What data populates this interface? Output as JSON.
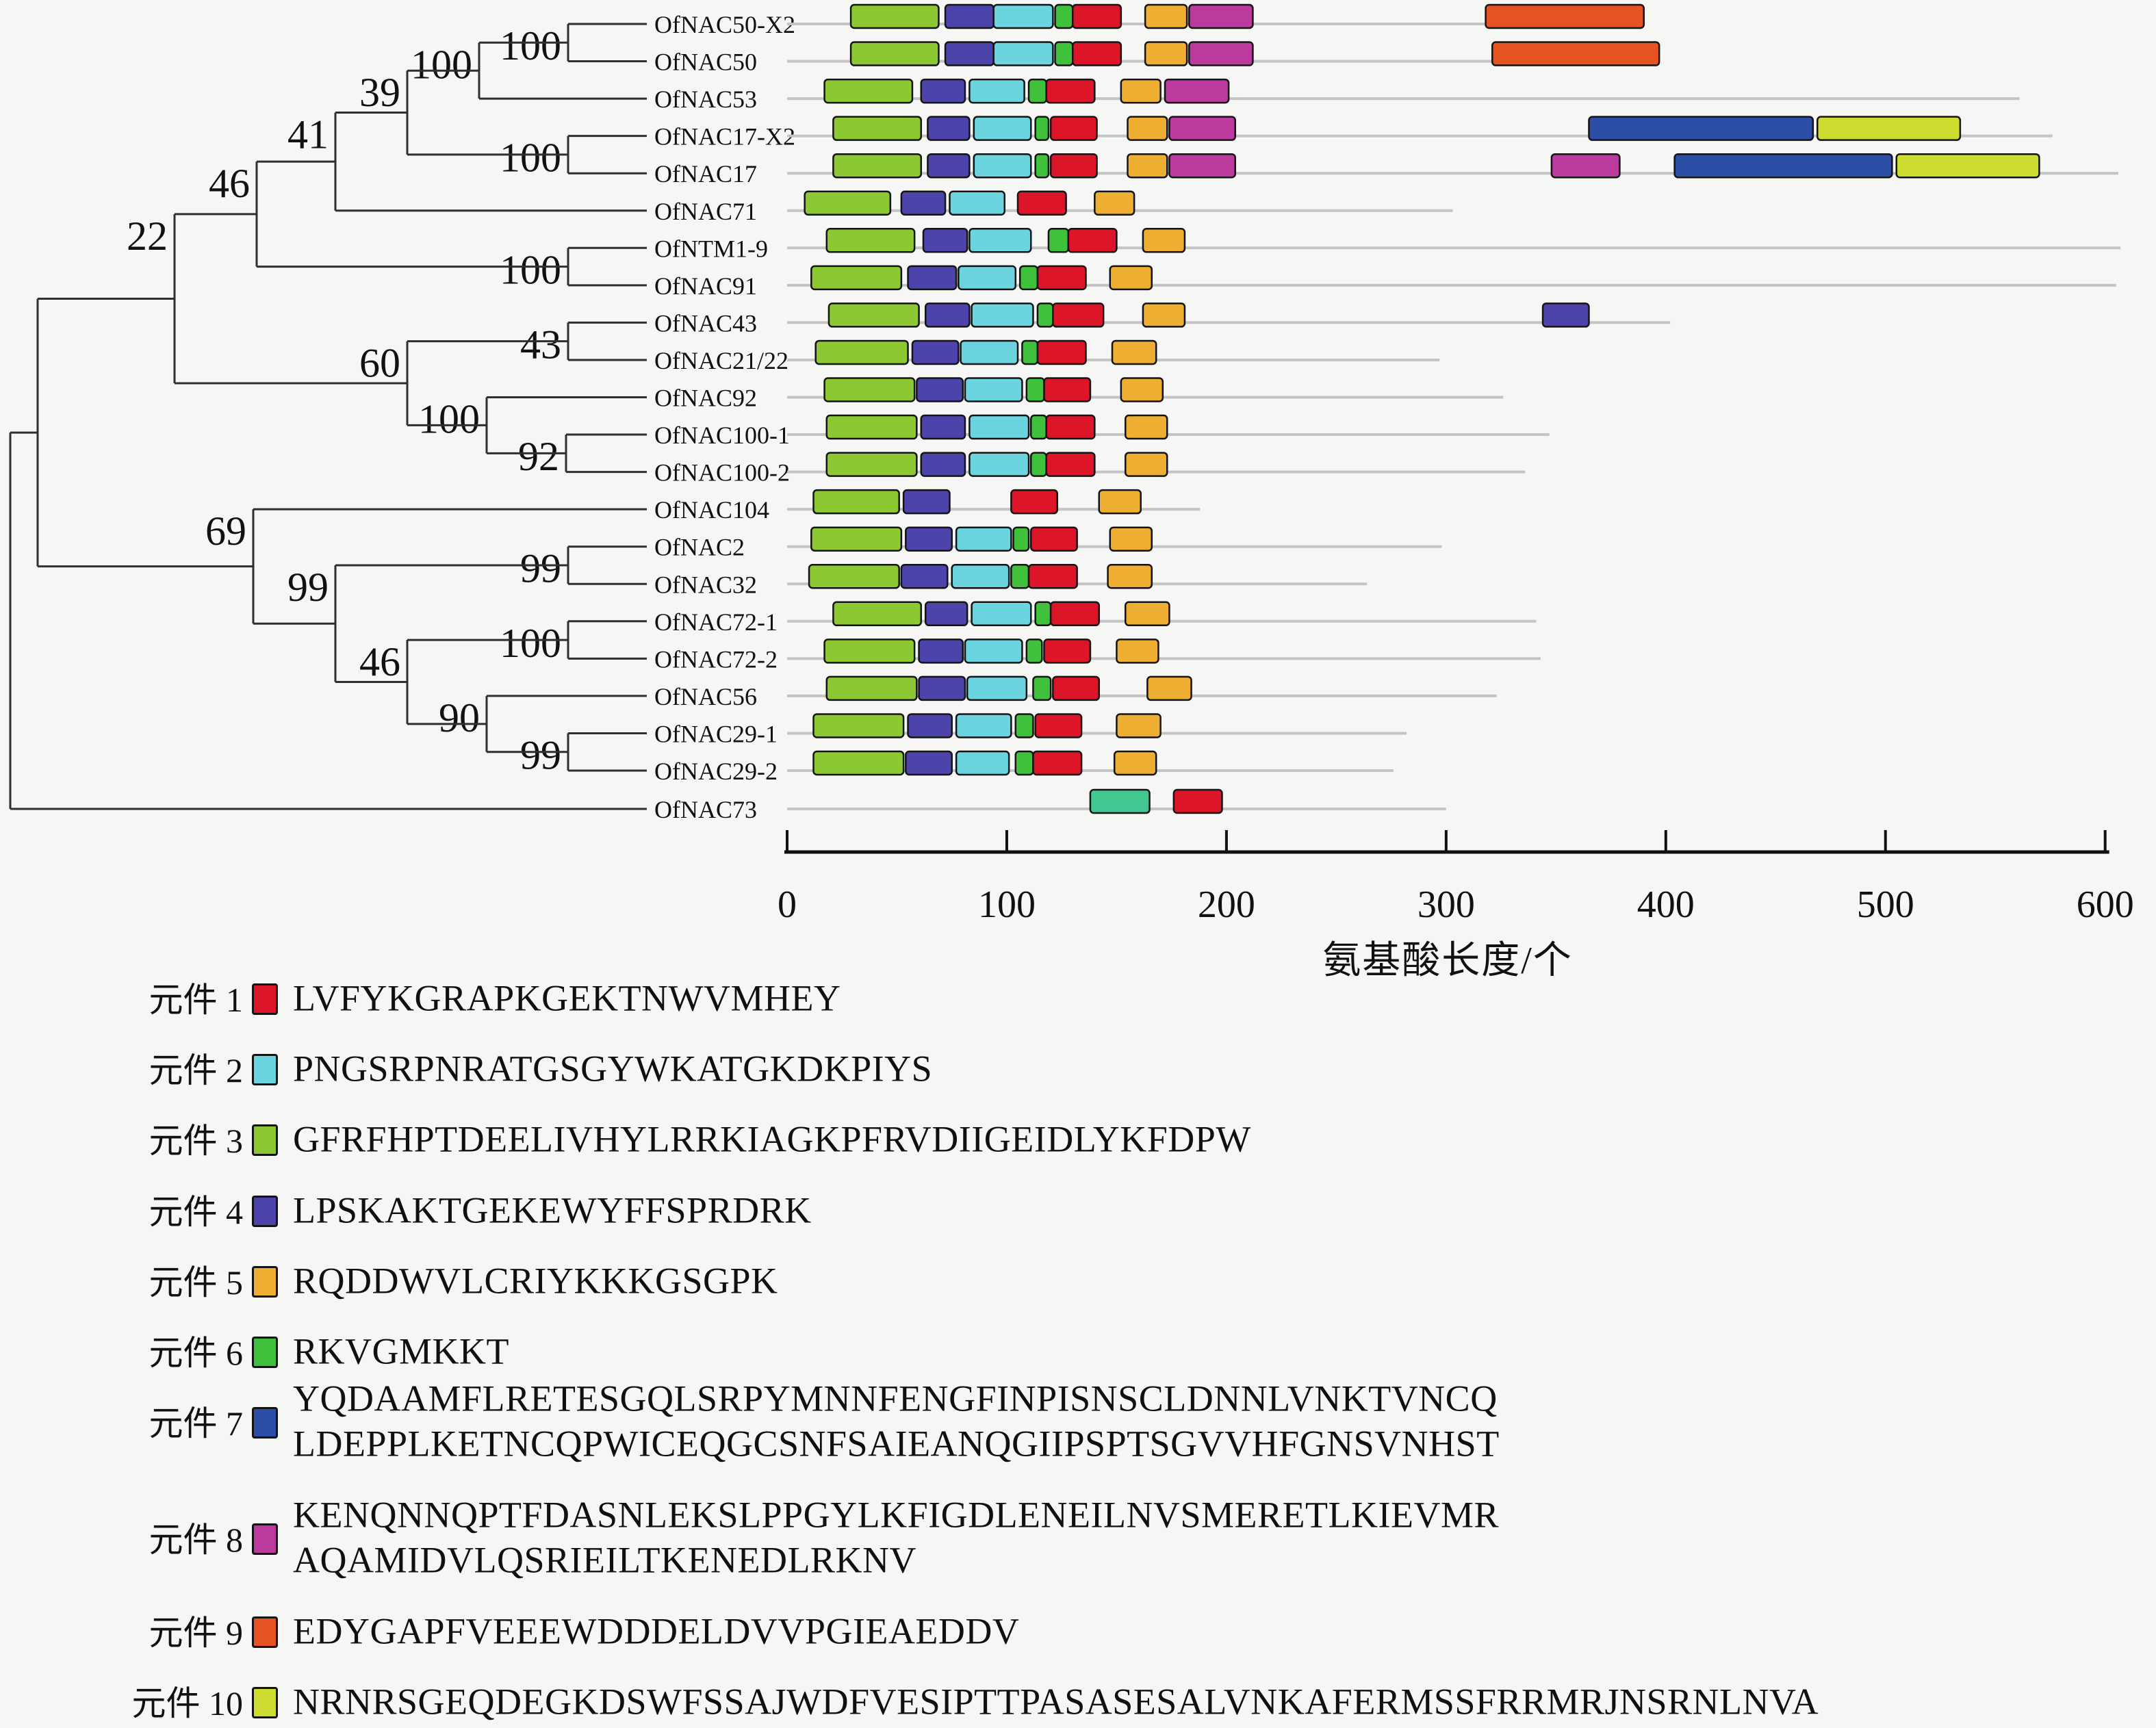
{
  "chart_data": {
    "type": "bar",
    "subtype": "protein-motif-location-map-with-phylogeny",
    "title": "",
    "xlabel": "氨基酸长度/个",
    "xlim": [
      0,
      600
    ],
    "x_ticks": [
      0,
      100,
      200,
      300,
      400,
      500,
      600
    ],
    "grid": false,
    "genes": [
      {
        "name": "OfNAC50-X2",
        "length": 389,
        "motifs": [
          [
            "m3",
            29,
            69
          ],
          [
            "m4",
            72,
            94
          ],
          [
            "m2",
            94,
            121
          ],
          [
            "m6",
            122,
            130
          ],
          [
            "m1",
            130,
            152
          ],
          [
            "m5",
            163,
            182
          ],
          [
            "m8",
            183,
            212
          ],
          [
            "m9",
            318,
            390
          ]
        ]
      },
      {
        "name": "OfNAC50",
        "length": 397,
        "motifs": [
          [
            "m3",
            29,
            69
          ],
          [
            "m4",
            72,
            94
          ],
          [
            "m2",
            94,
            121
          ],
          [
            "m6",
            122,
            130
          ],
          [
            "m1",
            130,
            152
          ],
          [
            "m5",
            163,
            182
          ],
          [
            "m8",
            183,
            212
          ],
          [
            "m9",
            321,
            397
          ]
        ]
      },
      {
        "name": "OfNAC53",
        "length": 561,
        "motifs": [
          [
            "m3",
            17,
            57
          ],
          [
            "m4",
            61,
            81
          ],
          [
            "m2",
            83,
            108
          ],
          [
            "m6",
            110,
            118
          ],
          [
            "m1",
            118,
            140
          ],
          [
            "m5",
            152,
            170
          ],
          [
            "m8",
            172,
            201
          ]
        ]
      },
      {
        "name": "OfNAC17-X2",
        "length": 576,
        "motifs": [
          [
            "m3",
            21,
            61
          ],
          [
            "m4",
            64,
            83
          ],
          [
            "m2",
            85,
            111
          ],
          [
            "m6",
            113,
            119
          ],
          [
            "m1",
            120,
            141
          ],
          [
            "m5",
            155,
            173
          ],
          [
            "m8",
            174,
            204
          ],
          [
            "m7",
            365,
            467
          ],
          [
            "m10",
            469,
            534
          ]
        ]
      },
      {
        "name": "OfNAC17",
        "length": 606,
        "motifs": [
          [
            "m3",
            21,
            61
          ],
          [
            "m4",
            64,
            83
          ],
          [
            "m2",
            85,
            111
          ],
          [
            "m6",
            113,
            119
          ],
          [
            "m1",
            120,
            141
          ],
          [
            "m5",
            155,
            173
          ],
          [
            "m8",
            174,
            204
          ],
          [
            "m8",
            348,
            379
          ],
          [
            "m7",
            404,
            503
          ],
          [
            "m10",
            505,
            570
          ]
        ]
      },
      {
        "name": "OfNAC71",
        "length": 303,
        "motifs": [
          [
            "m3",
            8,
            47
          ],
          [
            "m4",
            52,
            72
          ],
          [
            "m2",
            74,
            99
          ],
          [
            "m1",
            105,
            127
          ],
          [
            "m5",
            140,
            158
          ]
        ]
      },
      {
        "name": "OfNTM1-9",
        "length": 607,
        "motifs": [
          [
            "m3",
            18,
            58
          ],
          [
            "m4",
            62,
            82
          ],
          [
            "m2",
            83,
            111
          ],
          [
            "m6",
            119,
            128
          ],
          [
            "m1",
            128,
            150
          ],
          [
            "m5",
            162,
            181
          ]
        ]
      },
      {
        "name": "OfNAC91",
        "length": 605,
        "motifs": [
          [
            "m3",
            11,
            52
          ],
          [
            "m4",
            55,
            77
          ],
          [
            "m2",
            78,
            104
          ],
          [
            "m6",
            106,
            114
          ],
          [
            "m1",
            114,
            136
          ],
          [
            "m5",
            147,
            166
          ]
        ]
      },
      {
        "name": "OfNAC43",
        "length": 402,
        "motifs": [
          [
            "m3",
            19,
            60
          ],
          [
            "m4",
            63,
            83
          ],
          [
            "m2",
            84,
            112
          ],
          [
            "m6",
            114,
            121
          ],
          [
            "m1",
            121,
            144
          ],
          [
            "m5",
            162,
            181
          ],
          [
            "m4",
            344,
            365
          ]
        ]
      },
      {
        "name": "OfNAC21/22",
        "length": 297,
        "motifs": [
          [
            "m3",
            13,
            55
          ],
          [
            "m4",
            57,
            78
          ],
          [
            "m2",
            79,
            105
          ],
          [
            "m6",
            107,
            114
          ],
          [
            "m1",
            114,
            136
          ],
          [
            "m5",
            148,
            168
          ]
        ]
      },
      {
        "name": "OfNAC92",
        "length": 326,
        "motifs": [
          [
            "m3",
            17,
            58
          ],
          [
            "m4",
            59,
            80
          ],
          [
            "m2",
            81,
            107
          ],
          [
            "m6",
            109,
            117
          ],
          [
            "m1",
            117,
            138
          ],
          [
            "m5",
            152,
            171
          ]
        ]
      },
      {
        "name": "OfNAC100-1",
        "length": 347,
        "motifs": [
          [
            "m3",
            18,
            59
          ],
          [
            "m4",
            61,
            81
          ],
          [
            "m2",
            83,
            110
          ],
          [
            "m6",
            111,
            118
          ],
          [
            "m1",
            118,
            140
          ],
          [
            "m5",
            154,
            173
          ]
        ]
      },
      {
        "name": "OfNAC100-2",
        "length": 336,
        "motifs": [
          [
            "m3",
            18,
            59
          ],
          [
            "m4",
            61,
            81
          ],
          [
            "m2",
            83,
            110
          ],
          [
            "m6",
            111,
            118
          ],
          [
            "m1",
            118,
            140
          ],
          [
            "m5",
            154,
            173
          ]
        ]
      },
      {
        "name": "OfNAC104",
        "length": 188,
        "motifs": [
          [
            "m3",
            12,
            51
          ],
          [
            "m4",
            53,
            74
          ],
          [
            "m1",
            102,
            123
          ],
          [
            "m5",
            142,
            161
          ]
        ]
      },
      {
        "name": "OfNAC2",
        "length": 298,
        "motifs": [
          [
            "m3",
            11,
            52
          ],
          [
            "m4",
            54,
            75
          ],
          [
            "m2",
            77,
            102
          ],
          [
            "m6",
            103,
            110
          ],
          [
            "m1",
            111,
            132
          ],
          [
            "m5",
            147,
            166
          ]
        ]
      },
      {
        "name": "OfNAC32",
        "length": 264,
        "motifs": [
          [
            "m3",
            10,
            51
          ],
          [
            "m4",
            52,
            73
          ],
          [
            "m2",
            75,
            101
          ],
          [
            "m6",
            102,
            110
          ],
          [
            "m1",
            110,
            132
          ],
          [
            "m5",
            146,
            166
          ]
        ]
      },
      {
        "name": "OfNAC72-1",
        "length": 341,
        "motifs": [
          [
            "m3",
            21,
            61
          ],
          [
            "m4",
            63,
            82
          ],
          [
            "m2",
            84,
            111
          ],
          [
            "m6",
            113,
            120
          ],
          [
            "m1",
            120,
            142
          ],
          [
            "m5",
            154,
            174
          ]
        ]
      },
      {
        "name": "OfNAC72-2",
        "length": 343,
        "motifs": [
          [
            "m3",
            17,
            58
          ],
          [
            "m4",
            60,
            80
          ],
          [
            "m2",
            81,
            107
          ],
          [
            "m6",
            109,
            116
          ],
          [
            "m1",
            117,
            138
          ],
          [
            "m5",
            150,
            169
          ]
        ]
      },
      {
        "name": "OfNAC56",
        "length": 323,
        "motifs": [
          [
            "m3",
            18,
            59
          ],
          [
            "m4",
            60,
            81
          ],
          [
            "m2",
            82,
            109
          ],
          [
            "m6",
            112,
            120
          ],
          [
            "m1",
            121,
            142
          ],
          [
            "m5",
            164,
            184
          ]
        ]
      },
      {
        "name": "OfNAC29-1",
        "length": 282,
        "motifs": [
          [
            "m3",
            12,
            53
          ],
          [
            "m4",
            55,
            75
          ],
          [
            "m2",
            77,
            102
          ],
          [
            "m6",
            104,
            112
          ],
          [
            "m1",
            113,
            134
          ],
          [
            "m5",
            150,
            170
          ]
        ]
      },
      {
        "name": "OfNAC29-2",
        "length": 276,
        "motifs": [
          [
            "m3",
            12,
            53
          ],
          [
            "m4",
            54,
            75
          ],
          [
            "m2",
            77,
            101
          ],
          [
            "m6",
            104,
            112
          ],
          [
            "m1",
            112,
            134
          ],
          [
            "m5",
            149,
            168
          ]
        ]
      },
      {
        "name": "OfNAC73",
        "length": 300,
        "motifs": [
          [
            "m6b",
            138,
            165
          ],
          [
            "m1",
            176,
            198
          ]
        ]
      }
    ],
    "tree": {
      "tips_order": [
        "OfNAC50-X2",
        "OfNAC50",
        "OfNAC53",
        "OfNAC17-X2",
        "OfNAC17",
        "OfNAC71",
        "OfNTM1-9",
        "OfNAC91",
        "OfNAC43",
        "OfNAC21/22",
        "OfNAC92",
        "OfNAC100-1",
        "OfNAC100-2",
        "OfNAC104",
        "OfNAC2",
        "OfNAC32",
        "OfNAC72-1",
        "OfNAC72-2",
        "OfNAC56",
        "OfNAC29-1",
        "OfNAC29-2",
        "OfNAC73"
      ],
      "nodes": [
        {
          "id": "n1",
          "x": 830,
          "bootstrap": "100",
          "children": [
            "t1",
            "t2"
          ]
        },
        {
          "id": "n2",
          "x": 700,
          "bootstrap": "100",
          "children": [
            "n1",
            "t3"
          ]
        },
        {
          "id": "n3",
          "x": 830,
          "bootstrap": "100",
          "children": [
            "t4",
            "t5"
          ]
        },
        {
          "id": "n4",
          "x": 595,
          "bootstrap": "39",
          "children": [
            "n2",
            "n3"
          ]
        },
        {
          "id": "n5",
          "x": 490,
          "bootstrap": "41",
          "children": [
            "n4",
            "t6"
          ]
        },
        {
          "id": "n6",
          "x": 830,
          "bootstrap": "100",
          "children": [
            "t7",
            "t8"
          ]
        },
        {
          "id": "n7",
          "x": 375,
          "bootstrap": "46",
          "children": [
            "n5",
            "n6"
          ]
        },
        {
          "id": "n8",
          "x": 830,
          "bootstrap": "43",
          "children": [
            "t9",
            "t10"
          ]
        },
        {
          "id": "n9",
          "x": 827,
          "bootstrap": "92",
          "children": [
            "t12",
            "t13"
          ]
        },
        {
          "id": "n10",
          "x": 711,
          "bootstrap": "100",
          "children": [
            "t11",
            "n9"
          ]
        },
        {
          "id": "n11",
          "x": 595,
          "bootstrap": "60",
          "children": [
            "n8",
            "n10"
          ]
        },
        {
          "id": "n12",
          "x": 255,
          "bootstrap": "22",
          "children": [
            "n7",
            "n11"
          ]
        },
        {
          "id": "n13",
          "x": 830,
          "bootstrap": "99",
          "children": [
            "t15",
            "t16"
          ]
        },
        {
          "id": "n14",
          "x": 830,
          "bootstrap": "100",
          "children": [
            "t17",
            "t18"
          ]
        },
        {
          "id": "n15",
          "x": 830,
          "bootstrap": "99",
          "children": [
            "t20",
            "t21"
          ]
        },
        {
          "id": "n16",
          "x": 711,
          "bootstrap": "90",
          "children": [
            "t19",
            "n15"
          ]
        },
        {
          "id": "n17",
          "x": 595,
          "bootstrap": "46",
          "children": [
            "n14",
            "n16"
          ]
        },
        {
          "id": "n18",
          "x": 490,
          "bootstrap": "99",
          "children": [
            "n13",
            "n17"
          ]
        },
        {
          "id": "n19",
          "x": 370,
          "bootstrap": "69",
          "children": [
            "t14",
            "n18"
          ]
        },
        {
          "id": "n20",
          "x": 55,
          "bootstrap": "",
          "children": [
            "n12",
            "n19"
          ]
        },
        {
          "id": "root",
          "x": 15,
          "bootstrap": "",
          "children": [
            "n20",
            "t22"
          ]
        }
      ]
    }
  },
  "axis": {
    "label": "氨基酸长度/个"
  },
  "legend": {
    "items": [
      {
        "label": "元件 1",
        "motif": "m1",
        "sequence_lines": [
          "LVFYKGRAPKGEKTNWVMHEY"
        ]
      },
      {
        "label": "元件 2",
        "motif": "m2",
        "sequence_lines": [
          "PNGSRPNRATGSGYWKATGKDKPIYS"
        ]
      },
      {
        "label": "元件 3",
        "motif": "m3",
        "sequence_lines": [
          "GFRFHPTDEELIVHYLRRKIAGKPFRVDIIGEIDLYKFDPW"
        ]
      },
      {
        "label": "元件 4",
        "motif": "m4",
        "sequence_lines": [
          "LPSKAKTGEKEWYFFSPRDRK"
        ]
      },
      {
        "label": "元件 5",
        "motif": "m5",
        "sequence_lines": [
          "RQDDWVLCRIYKKKGSGPK"
        ]
      },
      {
        "label": "元件 6",
        "motif": "m6",
        "sequence_lines": [
          "RKVGMKKT"
        ]
      },
      {
        "label": "元件 7",
        "motif": "m7",
        "sequence_lines": [
          "YQDAAMFLRETESGQLSRPYMNNFENGFINPISNSCLDNNLVNKTVNCQ",
          "LDEPPLKETNCQPWICEQGCSNFSAIEANQGIIPSPTSGVVHFGNSVNHST"
        ]
      },
      {
        "label": "元件 8",
        "motif": "m8",
        "sequence_lines": [
          "KENQNNQPTFDASNLEKSLPPGYLKFIGDLENEILNVSMERETLKIEVMR",
          "AQAMIDVLQSRIEILTKENEDLRKNV"
        ]
      },
      {
        "label": "元件 9",
        "motif": "m9",
        "sequence_lines": [
          "EDYGAPFVEEEWDDDELDVVPGIEAEDDV"
        ]
      },
      {
        "label": "元件 10",
        "motif": "m10",
        "sequence_lines": [
          "NRNRSGEQDEGKDSWFSSAJWDFVESIPTTPASASESALVNKAFERMSSFRRMRJNSRNLNVA"
        ]
      }
    ]
  },
  "palette": {
    "m1": "#DD1529",
    "m2": "#6BD4DE",
    "m3": "#8CC832",
    "m4": "#4D44AB",
    "m5": "#EDAE31",
    "m6": "#3FC13C",
    "m6b": "#41C78F",
    "m7": "#2C4FA5",
    "m8": "#BB3A9E",
    "m9": "#E65322",
    "m10": "#CCDD2F"
  },
  "layout_colors": {
    "background": "#F6F6F5",
    "branch": "#2F2F2F",
    "protein_line": "#C4C4C4",
    "axis": "#111111"
  }
}
